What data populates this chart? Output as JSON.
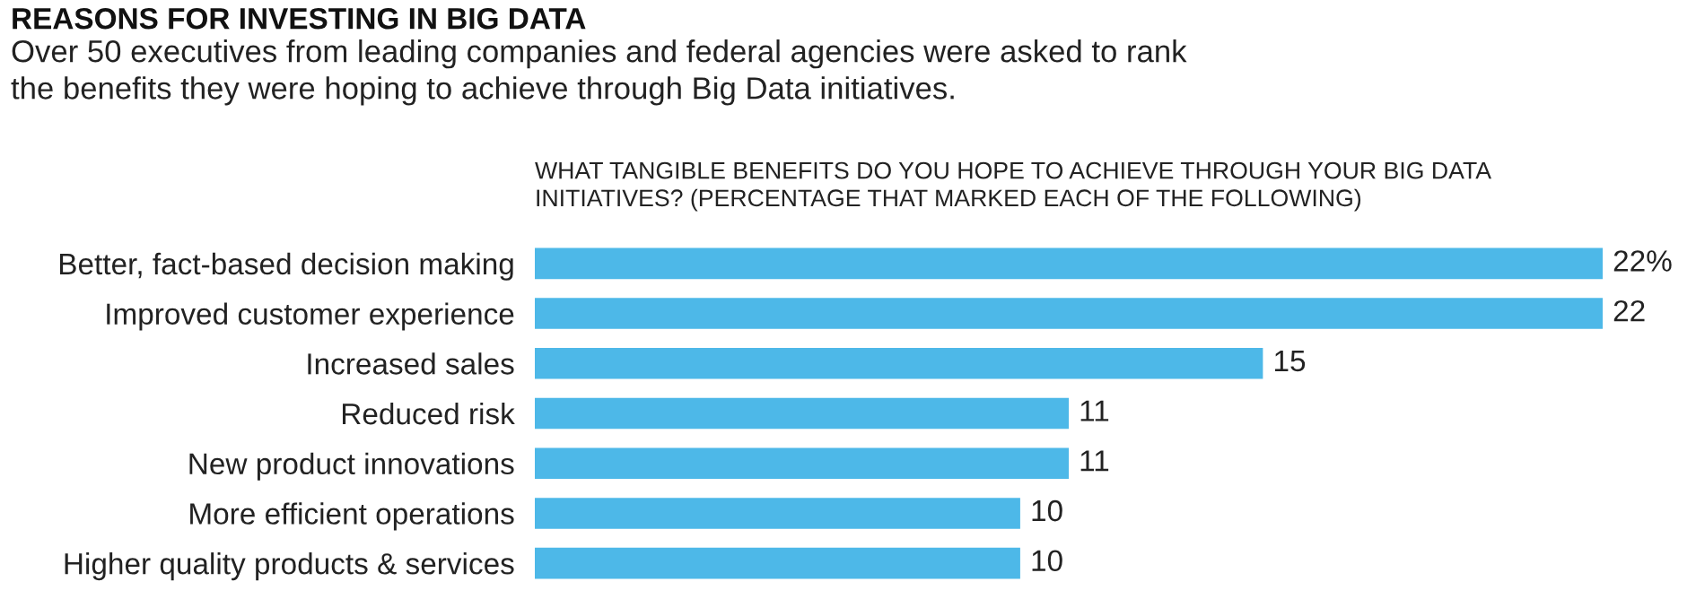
{
  "chart_data": {
    "type": "bar",
    "orientation": "horizontal",
    "title": "REASONS FOR INVESTING IN BIG DATA",
    "subtitle": "Over 50 executives from leading companies and federal agencies were asked to rank\nthe benefits they were hoping to achieve through Big Data initiatives.",
    "annotations": [
      "WHAT TANGIBLE BENEFITS DO YOU HOPE TO ACHIEVE THROUGH YOUR BIG DATA\nINITIATIVES? (PERCENTAGE THAT MARKED EACH OF THE FOLLOWING)"
    ],
    "categories": [
      "Better, fact-based decision making",
      "Improved customer experience",
      "Increased sales",
      "Reduced risk",
      "New product innovations",
      "More efficient operations",
      "Higher quality products & services"
    ],
    "values": [
      22,
      22,
      15,
      11,
      11,
      10,
      10
    ],
    "value_labels": [
      "22%",
      "22",
      "15",
      "11",
      "11",
      "10",
      "10"
    ],
    "color": "#4db8e8",
    "tick_labels": "y",
    "grid": false,
    "legend": false
  }
}
